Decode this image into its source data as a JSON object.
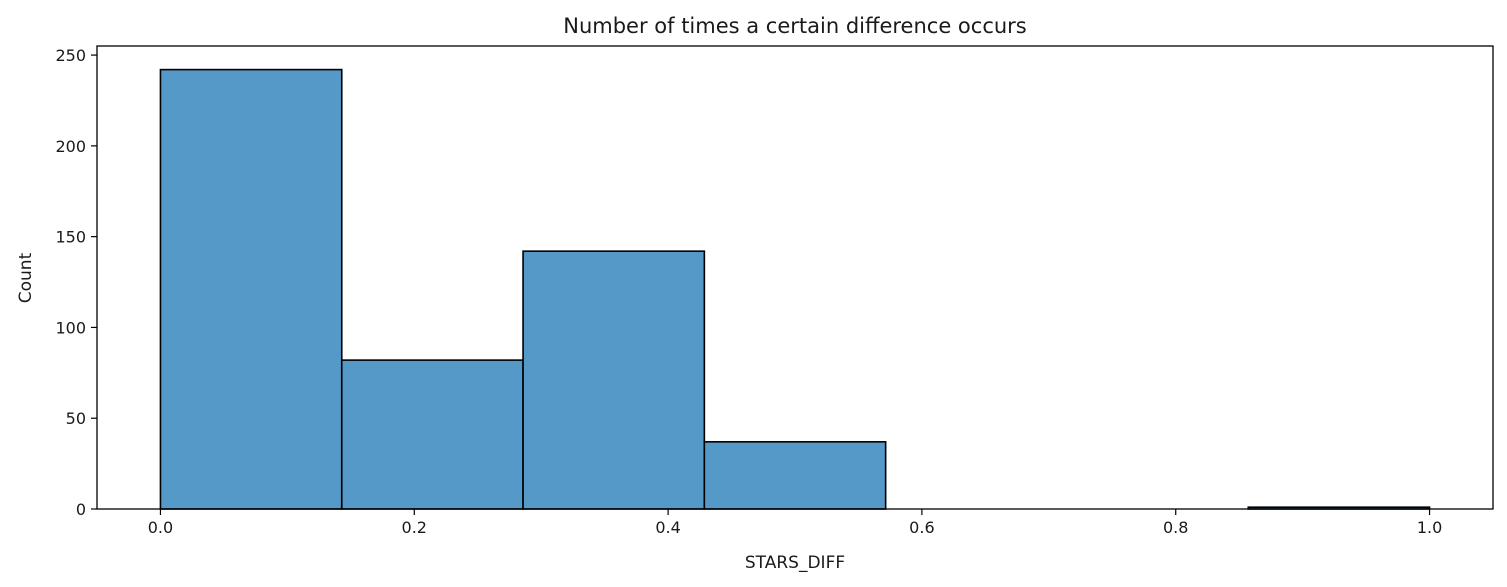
{
  "chart_data": {
    "type": "bar",
    "title": "Number of times a certain difference occurs",
    "xlabel": "STARS_DIFF",
    "ylabel": "Count",
    "bins": [
      {
        "start": 0.0,
        "end": 0.142857,
        "count": 242
      },
      {
        "start": 0.142857,
        "end": 0.285714,
        "count": 82
      },
      {
        "start": 0.285714,
        "end": 0.428571,
        "count": 142
      },
      {
        "start": 0.428571,
        "end": 0.571429,
        "count": 37
      },
      {
        "start": 0.571429,
        "end": 0.714286,
        "count": 0
      },
      {
        "start": 0.714286,
        "end": 0.857143,
        "count": 0
      },
      {
        "start": 0.857143,
        "end": 1.0,
        "count": 1
      }
    ],
    "xlim": [
      -0.05,
      1.05
    ],
    "ylim": [
      0,
      255
    ],
    "xticks": [
      {
        "value": 0.0,
        "label": "0.0"
      },
      {
        "value": 0.2,
        "label": "0.2"
      },
      {
        "value": 0.4,
        "label": "0.4"
      },
      {
        "value": 0.6,
        "label": "0.6"
      },
      {
        "value": 0.8,
        "label": "0.8"
      },
      {
        "value": 1.0,
        "label": "1.0"
      }
    ],
    "yticks": [
      {
        "value": 0,
        "label": "0"
      },
      {
        "value": 50,
        "label": "50"
      },
      {
        "value": 100,
        "label": "100"
      },
      {
        "value": 150,
        "label": "150"
      },
      {
        "value": 200,
        "label": "200"
      },
      {
        "value": 250,
        "label": "250"
      }
    ],
    "grid": false,
    "bar_color": "#5499c7",
    "edge_color": "#000000"
  }
}
